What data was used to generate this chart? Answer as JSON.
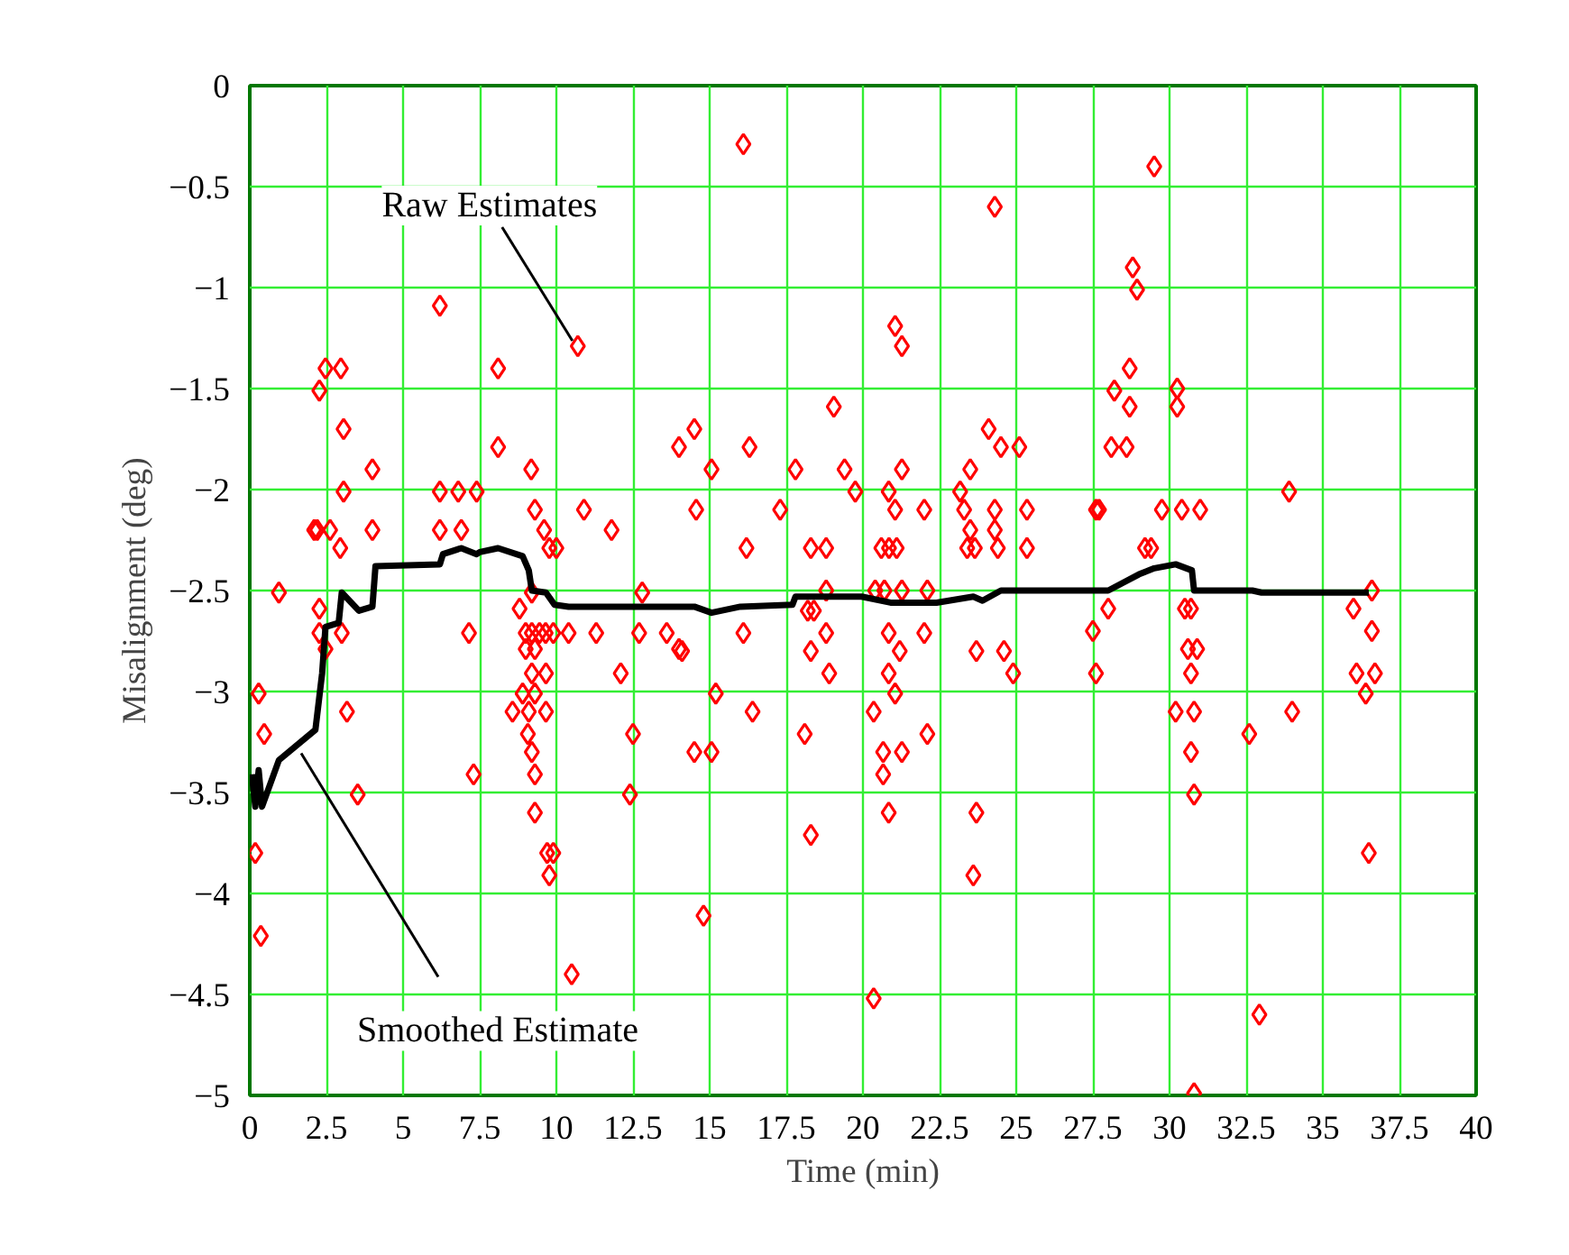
{
  "chart_data": {
    "type": "scatter",
    "xlabel": "Time (min)",
    "ylabel": "Misalignment (deg)",
    "xlim": [
      0,
      40
    ],
    "ylim": [
      -5,
      0
    ],
    "xticks": [
      0,
      2.5,
      5,
      7.5,
      10,
      12.5,
      15,
      17.5,
      20,
      22.5,
      25,
      27.5,
      30,
      32.5,
      35,
      37.5,
      40
    ],
    "yticks": [
      0,
      {
        "value": -0.5,
        "label": "−0.5"
      },
      {
        "value": -1,
        "label": "−1"
      },
      {
        "value": -1.5,
        "label": "−1.5"
      },
      {
        "value": -2,
        "label": "−2"
      },
      {
        "value": -2.5,
        "label": "−2.5"
      },
      {
        "value": -3,
        "label": "−3"
      },
      {
        "value": -3.5,
        "label": "−3.5"
      },
      {
        "value": -4,
        "label": "−4"
      },
      {
        "value": -4.5,
        "label": "−4.5"
      },
      {
        "value": -5,
        "label": "−5"
      }
    ],
    "grid": true,
    "annotations": [
      {
        "text": "Raw Estimates",
        "x": 10.7,
        "y": -1.29
      },
      {
        "text": "Smoothed Estimate",
        "x": 1.5,
        "y": -3.27
      }
    ],
    "series": [
      {
        "type": "scatter",
        "marker": "diamond",
        "color": "#ff0000",
        "x": [
          0.29,
          0.47,
          0.18,
          0.36,
          0.95,
          2.47,
          2.97,
          2.27,
          3.06,
          4.0,
          3.06,
          2.1,
          2.2,
          2.62,
          4.0,
          2.95,
          2.27,
          2.27,
          3.0,
          2.47,
          3.17,
          3.52,
          6.2,
          10.7,
          8.1,
          8.1,
          9.18,
          6.2,
          6.8,
          7.4,
          9.3,
          10.9,
          11.8,
          6.2,
          6.9,
          9.6,
          9.77,
          10.0,
          12.8,
          9.2,
          8.8,
          7.15,
          9.0,
          9.2,
          9.45,
          9.65,
          9.9,
          10.4,
          11.3,
          12.7,
          13.6,
          14.0,
          9.0,
          9.3,
          9.2,
          9.66,
          12.1,
          8.9,
          9.3,
          8.57,
          9.1,
          9.66,
          9.07,
          12.5,
          9.2,
          7.3,
          9.3,
          12.4,
          9.3,
          9.7,
          9.9,
          9.77,
          10.5,
          16.1,
          24.3,
          21.05,
          21.27,
          19.05,
          14.5,
          14.0,
          16.3,
          24.1,
          24.5,
          25.1,
          15.06,
          17.8,
          19.4,
          21.27,
          23.5,
          19.75,
          20.84,
          23.17,
          14.56,
          17.3,
          21.05,
          22.0,
          23.3,
          24.3,
          25.35,
          23.5,
          24.3,
          16.2,
          18.3,
          18.8,
          20.6,
          20.85,
          21.1,
          23.4,
          23.65,
          24.4,
          25.35,
          18.8,
          20.4,
          20.7,
          21.27,
          22.1,
          18.2,
          18.4,
          16.1,
          18.8,
          20.84,
          22.0,
          14.1,
          18.3,
          21.2,
          23.7,
          24.6,
          18.9,
          20.84,
          24.9,
          15.2,
          21.05,
          16.4,
          20.35,
          18.1,
          22.1,
          14.5,
          15.06,
          20.66,
          21.27,
          20.66,
          20.84,
          23.7,
          18.3,
          23.6,
          14.8,
          20.35,
          29.5,
          28.8,
          28.94,
          28.7,
          28.2,
          28.7,
          30.25,
          30.25,
          28.1,
          28.6,
          33.9,
          27.6,
          27.7,
          29.75,
          30.4,
          31.0,
          29.2,
          29.4,
          36.6,
          28.0,
          30.5,
          30.7,
          27.5,
          36.0,
          36.6,
          30.6,
          30.9,
          27.6,
          30.7,
          36.1,
          36.7,
          36.4,
          30.2,
          30.8,
          34.0,
          32.6,
          30.7,
          30.8,
          36.5,
          32.93,
          30.8
        ],
        "values": [
          -3.01,
          -3.21,
          -3.8,
          -4.21,
          -2.51,
          -1.4,
          -1.4,
          -1.51,
          -1.7,
          -1.9,
          -2.01,
          -2.2,
          -2.2,
          -2.2,
          -2.2,
          -2.29,
          -2.59,
          -2.71,
          -2.71,
          -2.79,
          -3.1,
          -3.51,
          -1.09,
          -1.29,
          -1.4,
          -1.79,
          -1.9,
          -2.01,
          -2.01,
          -2.01,
          -2.1,
          -2.1,
          -2.2,
          -2.2,
          -2.2,
          -2.2,
          -2.29,
          -2.29,
          -2.51,
          -2.51,
          -2.59,
          -2.71,
          -2.71,
          -2.71,
          -2.71,
          -2.71,
          -2.71,
          -2.71,
          -2.71,
          -2.71,
          -2.71,
          -2.79,
          -2.79,
          -2.79,
          -2.91,
          -2.91,
          -2.91,
          -3.01,
          -3.01,
          -3.1,
          -3.1,
          -3.1,
          -3.21,
          -3.21,
          -3.3,
          -3.41,
          -3.41,
          -3.51,
          -3.6,
          -3.8,
          -3.8,
          -3.91,
          -4.4,
          -0.29,
          -0.6,
          -1.19,
          -1.29,
          -1.59,
          -1.7,
          -1.79,
          -1.79,
          -1.7,
          -1.79,
          -1.79,
          -1.9,
          -1.9,
          -1.9,
          -1.9,
          -1.9,
          -2.01,
          -2.01,
          -2.01,
          -2.1,
          -2.1,
          -2.1,
          -2.1,
          -2.1,
          -2.1,
          -2.1,
          -2.2,
          -2.2,
          -2.29,
          -2.29,
          -2.29,
          -2.29,
          -2.29,
          -2.29,
          -2.29,
          -2.29,
          -2.29,
          -2.29,
          -2.5,
          -2.5,
          -2.5,
          -2.5,
          -2.5,
          -2.6,
          -2.6,
          -2.71,
          -2.71,
          -2.71,
          -2.71,
          -2.8,
          -2.8,
          -2.8,
          -2.8,
          -2.8,
          -2.91,
          -2.91,
          -2.91,
          -3.01,
          -3.01,
          -3.1,
          -3.1,
          -3.21,
          -3.21,
          -3.3,
          -3.3,
          -3.3,
          -3.3,
          -3.41,
          -3.6,
          -3.6,
          -3.71,
          -3.91,
          -4.11,
          -4.52,
          -0.4,
          -0.9,
          -1.01,
          -1.4,
          -1.51,
          -1.59,
          -1.5,
          -1.59,
          -1.79,
          -1.79,
          -2.01,
          -2.1,
          -2.1,
          -2.1,
          -2.1,
          -2.1,
          -2.29,
          -2.29,
          -2.5,
          -2.59,
          -2.59,
          -2.59,
          -2.7,
          -2.59,
          -2.7,
          -2.79,
          -2.79,
          -2.91,
          -2.91,
          -2.91,
          -2.91,
          -3.01,
          -3.1,
          -3.1,
          -3.1,
          -3.21,
          -3.3,
          -3.51,
          -3.8,
          -4.6,
          -4.99
        ]
      },
      {
        "type": "line",
        "color": "#000000",
        "line_style": "solid",
        "x": [
          0.07,
          0.18,
          0.29,
          0.4,
          0.95,
          2.14,
          2.36,
          2.47,
          2.9,
          3.0,
          3.56,
          4.0,
          4.1,
          6.2,
          6.3,
          6.9,
          7.4,
          7.5,
          8.1,
          8.9,
          9.1,
          9.2,
          9.66,
          9.94,
          10.4,
          12.2,
          14.5,
          15.06,
          16.0,
          17.7,
          17.8,
          19.96,
          20.9,
          22.4,
          23.6,
          23.9,
          24.5,
          28.0,
          29.0,
          29.5,
          30.2,
          30.73,
          30.8,
          32.7,
          33.0,
          36.5
        ],
        "values": [
          -3.41,
          -3.57,
          -3.39,
          -3.57,
          -3.34,
          -3.19,
          -2.91,
          -2.68,
          -2.66,
          -2.51,
          -2.6,
          -2.58,
          -2.38,
          -2.37,
          -2.32,
          -2.29,
          -2.32,
          -2.31,
          -2.29,
          -2.33,
          -2.4,
          -2.5,
          -2.51,
          -2.57,
          -2.58,
          -2.58,
          -2.58,
          -2.61,
          -2.58,
          -2.57,
          -2.53,
          -2.53,
          -2.56,
          -2.56,
          -2.53,
          -2.55,
          -2.5,
          -2.5,
          -2.42,
          -2.39,
          -2.37,
          -2.4,
          -2.5,
          -2.5,
          -2.51,
          -2.51
        ]
      }
    ]
  }
}
